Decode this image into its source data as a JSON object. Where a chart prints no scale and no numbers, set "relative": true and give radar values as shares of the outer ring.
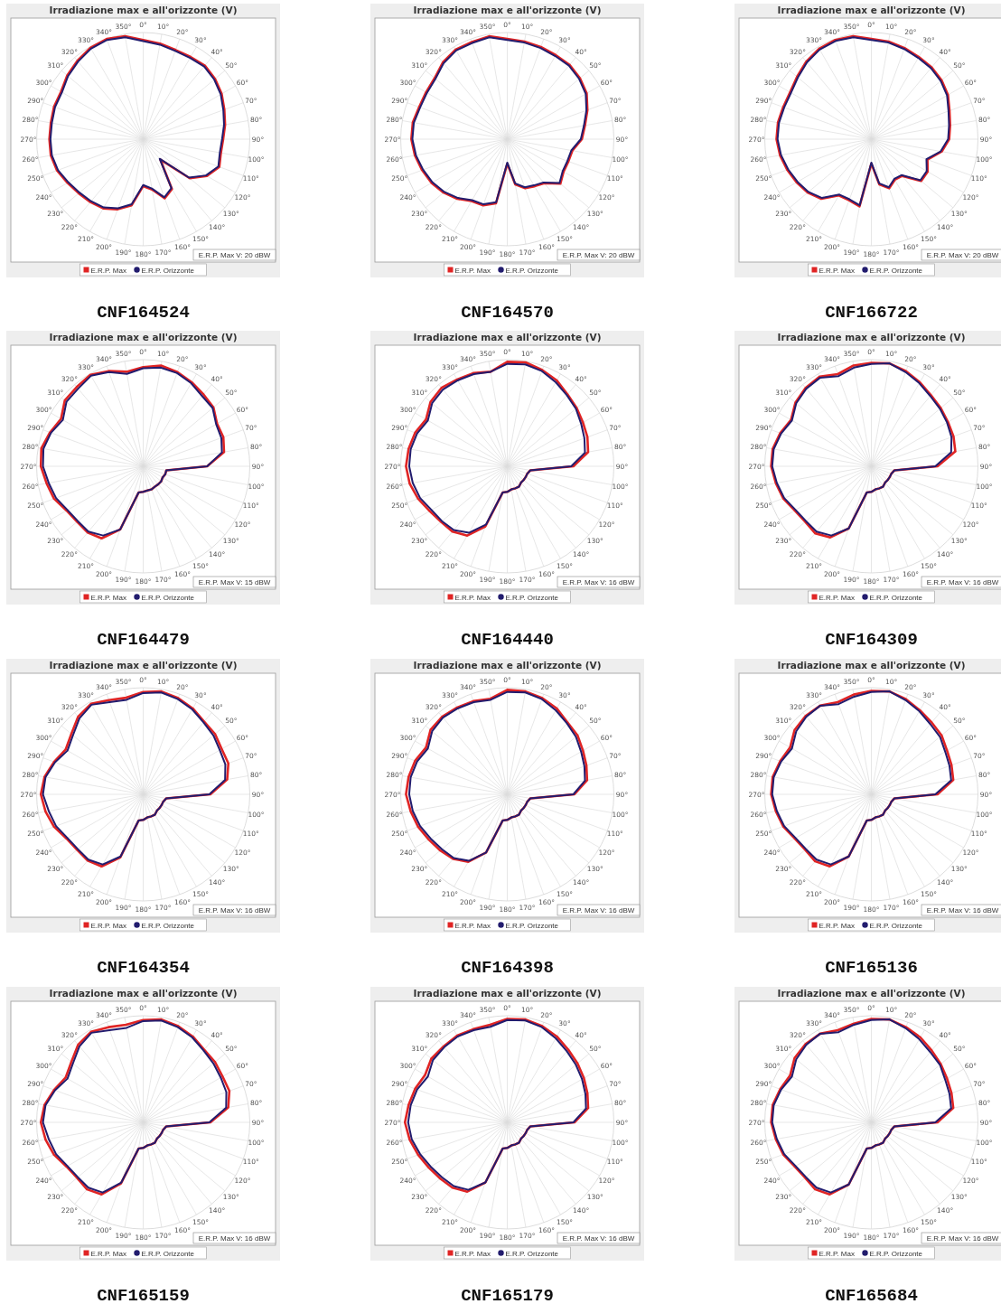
{
  "chart_data": [
    {
      "type": "radar",
      "title": "Irradiazione max e all'orizzonte (V)",
      "relative": true,
      "grid": true,
      "legend": "bottom",
      "categories": [
        "0°",
        "10°",
        "20°",
        "30°",
        "40°",
        "50°",
        "60°",
        "70°",
        "80°",
        "90°",
        "100°",
        "110°",
        "120°",
        "130°",
        "140°",
        "150°",
        "160°",
        "170°",
        "180°",
        "190°",
        "200°",
        "210°",
        "220°",
        "230°",
        "240°",
        "250°",
        "260°",
        "270°",
        "280°",
        "290°",
        "300°",
        "310°",
        "320°",
        "330°",
        "340°",
        "350°"
      ],
      "annotations": [
        "E.R.P. Max V: 20 dBW",
        "CNF164524"
      ],
      "series": [
        {
          "name": "E.R.P. Max",
          "color": "#e02424",
          "values": [
            0.93,
            0.91,
            0.89,
            0.89,
            0.9,
            0.88,
            0.85,
            0.81,
            0.78,
            0.75,
            0.74,
            0.76,
            0.69,
            0.57,
            0.25,
            0.54,
            0.59,
            0.48,
            0.44,
            0.63,
            0.7,
            0.75,
            0.77,
            0.79,
            0.82,
            0.86,
            0.88,
            0.88,
            0.88,
            0.89,
            0.89,
            0.93,
            0.96,
            0.99,
            1,
            0.98
          ]
        },
        {
          "name": "E.R.P. Orizzonte",
          "color": "#221c6e",
          "values": [
            0.92,
            0.9,
            0.88,
            0.88,
            0.89,
            0.87,
            0.84,
            0.8,
            0.77,
            0.74,
            0.73,
            0.75,
            0.68,
            0.56,
            0.24,
            0.53,
            0.58,
            0.47,
            0.43,
            0.62,
            0.69,
            0.74,
            0.76,
            0.78,
            0.81,
            0.85,
            0.87,
            0.87,
            0.87,
            0.88,
            0.88,
            0.92,
            0.95,
            0.98,
            0.99,
            0.97
          ]
        }
      ]
    },
    {
      "type": "radar",
      "title": "Irradiazione max e all'orizzonte (V)",
      "relative": true,
      "grid": true,
      "legend": "bottom",
      "categories": [
        "0°",
        "10°",
        "20°",
        "30°",
        "40°",
        "50°",
        "60°",
        "70°",
        "80°",
        "90°",
        "100°",
        "110°",
        "120°",
        "130°",
        "140°",
        "150°",
        "160°",
        "170°",
        "180°",
        "190°",
        "200°",
        "210°",
        "220°",
        "230°",
        "240°",
        "250°",
        "260°",
        "270°",
        "280°",
        "290°",
        "300°",
        "310°",
        "320°",
        "330°",
        "340°",
        "350°"
      ],
      "annotations": [
        "E.R.P. Max V: 20 dBW",
        "CNF164570"
      ],
      "series": [
        {
          "name": "E.R.P. Max",
          "color": "#e02424",
          "values": [
            0.94,
            0.93,
            0.92,
            0.91,
            0.91,
            0.89,
            0.86,
            0.8,
            0.74,
            0.7,
            0.62,
            0.61,
            0.61,
            0.65,
            0.54,
            0.51,
            0.49,
            0.43,
            0.23,
            0.61,
            0.66,
            0.67,
            0.73,
            0.78,
            0.82,
            0.85,
            0.88,
            0.9,
            0.9,
            0.88,
            0.88,
            0.89,
            0.94,
            0.97,
            0.97,
            0.98
          ]
        },
        {
          "name": "E.R.P. Orizzonte",
          "color": "#221c6e",
          "values": [
            0.93,
            0.92,
            0.91,
            0.9,
            0.9,
            0.88,
            0.85,
            0.79,
            0.73,
            0.69,
            0.61,
            0.6,
            0.6,
            0.64,
            0.53,
            0.5,
            0.48,
            0.42,
            0.22,
            0.6,
            0.65,
            0.66,
            0.72,
            0.77,
            0.81,
            0.84,
            0.87,
            0.89,
            0.89,
            0.87,
            0.87,
            0.88,
            0.93,
            0.96,
            0.96,
            0.97
          ]
        }
      ]
    },
    {
      "type": "radar",
      "title": "Irradiazione max e all'orizzonte (V)",
      "relative": true,
      "grid": true,
      "legend": "bottom",
      "categories": [
        "0°",
        "10°",
        "20°",
        "30°",
        "40°",
        "50°",
        "60°",
        "70°",
        "80°",
        "90°",
        "100°",
        "110°",
        "120°",
        "130°",
        "140°",
        "150°",
        "160°",
        "170°",
        "180°",
        "190°",
        "200°",
        "210°",
        "220°",
        "230°",
        "240°",
        "250°",
        "260°",
        "270°",
        "280°",
        "290°",
        "300°",
        "310°",
        "320°",
        "330°",
        "340°",
        "350°"
      ],
      "annotations": [
        "E.R.P. Max V: 20 dBW",
        "CNF166722"
      ],
      "series": [
        {
          "name": "E.R.P. Max",
          "color": "#e02424",
          "values": [
            0.94,
            0.93,
            0.91,
            0.89,
            0.88,
            0.86,
            0.83,
            0.78,
            0.75,
            0.73,
            0.67,
            0.56,
            0.61,
            0.61,
            0.45,
            0.44,
            0.49,
            0.43,
            0.23,
            0.64,
            0.61,
            0.61,
            0.73,
            0.78,
            0.81,
            0.84,
            0.87,
            0.89,
            0.89,
            0.88,
            0.88,
            0.91,
            0.95,
            0.98,
            0.99,
            0.98
          ]
        },
        {
          "name": "E.R.P. Orizzonte",
          "color": "#221c6e",
          "values": [
            0.93,
            0.92,
            0.9,
            0.88,
            0.87,
            0.85,
            0.82,
            0.77,
            0.74,
            0.72,
            0.66,
            0.55,
            0.6,
            0.6,
            0.44,
            0.43,
            0.48,
            0.42,
            0.22,
            0.63,
            0.6,
            0.6,
            0.72,
            0.77,
            0.8,
            0.83,
            0.86,
            0.88,
            0.88,
            0.87,
            0.87,
            0.9,
            0.94,
            0.97,
            0.98,
            0.97
          ]
        }
      ]
    },
    {
      "type": "radar",
      "title": "Irradiazione max e all'orizzonte (V)",
      "relative": true,
      "grid": true,
      "legend": "bottom",
      "categories": [
        "0°",
        "10°",
        "20°",
        "30°",
        "40°",
        "50°",
        "60°",
        "70°",
        "80°",
        "90°",
        "100°",
        "110°",
        "120°",
        "130°",
        "140°",
        "150°",
        "160°",
        "170°",
        "180°",
        "190°",
        "200°",
        "210°",
        "220°",
        "230°",
        "240°",
        "250°",
        "260°",
        "270°",
        "280°",
        "290°",
        "300°",
        "310°",
        "320°",
        "330°",
        "340°",
        "350°"
      ],
      "annotations": [
        "E.R.P. Max V: 15 dBW",
        "CNF164479"
      ],
      "series": [
        {
          "name": "E.R.P. Max",
          "color": "#e02424",
          "values": [
            0.93,
            0.96,
            0.94,
            0.91,
            0.88,
            0.86,
            0.8,
            0.8,
            0.77,
            0.6,
            0.22,
            0.22,
            0.21,
            0.22,
            0.22,
            0.22,
            0.23,
            0.23,
            0.24,
            0.25,
            0.63,
            0.78,
            0.81,
            0.81,
            0.83,
            0.89,
            0.92,
            0.96,
            0.97,
            0.93,
            0.89,
            0.96,
            0.97,
            0.99,
            0.95,
            0.9
          ]
        },
        {
          "name": "E.R.P. Orizzonte",
          "color": "#221c6e",
          "values": [
            0.92,
            0.94,
            0.93,
            0.9,
            0.86,
            0.85,
            0.79,
            0.78,
            0.75,
            0.6,
            0.22,
            0.22,
            0.21,
            0.22,
            0.22,
            0.22,
            0.23,
            0.23,
            0.24,
            0.25,
            0.63,
            0.75,
            0.8,
            0.8,
            0.82,
            0.87,
            0.9,
            0.94,
            0.95,
            0.92,
            0.87,
            0.94,
            0.95,
            0.98,
            0.94,
            0.88
          ]
        }
      ]
    },
    {
      "type": "radar",
      "title": "Irradiazione max e all'orizzonte (V)",
      "relative": true,
      "grid": true,
      "legend": "bottom",
      "categories": [
        "0°",
        "10°",
        "20°",
        "30°",
        "40°",
        "50°",
        "60°",
        "70°",
        "80°",
        "90°",
        "100°",
        "110°",
        "120°",
        "130°",
        "140°",
        "150°",
        "160°",
        "170°",
        "180°",
        "190°",
        "200°",
        "210°",
        "220°",
        "230°",
        "240°",
        "250°",
        "260°",
        "270°",
        "280°",
        "290°",
        "300°",
        "310°",
        "320°",
        "330°",
        "340°",
        "350°"
      ],
      "annotations": [
        "E.R.P. Max V: 16 dBW",
        "CNF164440"
      ],
      "series": [
        {
          "name": "E.R.P. Max",
          "color": "#e02424",
          "values": [
            0.98,
            0.99,
            0.96,
            0.93,
            0.88,
            0.85,
            0.82,
            0.8,
            0.77,
            0.62,
            0.22,
            0.2,
            0.2,
            0.2,
            0.2,
            0.22,
            0.22,
            0.22,
            0.24,
            0.25,
            0.6,
            0.75,
            0.8,
            0.81,
            0.84,
            0.89,
            0.93,
            0.95,
            0.94,
            0.92,
            0.88,
            0.94,
            0.96,
            0.94,
            0.93,
            0.9
          ]
        },
        {
          "name": "E.R.P. Orizzonte",
          "color": "#221c6e",
          "values": [
            0.96,
            0.97,
            0.95,
            0.91,
            0.87,
            0.84,
            0.8,
            0.77,
            0.74,
            0.6,
            0.22,
            0.2,
            0.2,
            0.2,
            0.2,
            0.22,
            0.22,
            0.22,
            0.24,
            0.25,
            0.58,
            0.72,
            0.78,
            0.8,
            0.82,
            0.87,
            0.9,
            0.92,
            0.92,
            0.9,
            0.86,
            0.92,
            0.94,
            0.93,
            0.92,
            0.9
          ]
        }
      ]
    },
    {
      "type": "radar",
      "title": "Irradiazione max e all'orizzonte (V)",
      "relative": true,
      "grid": true,
      "legend": "bottom",
      "categories": [
        "0°",
        "10°",
        "20°",
        "30°",
        "40°",
        "50°",
        "60°",
        "70°",
        "80°",
        "90°",
        "100°",
        "110°",
        "120°",
        "130°",
        "140°",
        "150°",
        "160°",
        "170°",
        "180°",
        "190°",
        "200°",
        "210°",
        "220°",
        "230°",
        "240°",
        "250°",
        "260°",
        "270°",
        "280°",
        "290°",
        "300°",
        "310°",
        "320°",
        "330°",
        "340°",
        "350°"
      ],
      "annotations": [
        "E.R.P. Max V: 16 dBW",
        "CNF164309"
      ],
      "series": [
        {
          "name": "E.R.P. Max",
          "color": "#e02424",
          "values": [
            0.97,
            0.98,
            0.95,
            0.91,
            0.87,
            0.85,
            0.83,
            0.82,
            0.8,
            0.62,
            0.22,
            0.2,
            0.2,
            0.2,
            0.2,
            0.22,
            0.22,
            0.22,
            0.24,
            0.25,
            0.62,
            0.77,
            0.82,
            0.81,
            0.83,
            0.88,
            0.91,
            0.94,
            0.94,
            0.91,
            0.87,
            0.93,
            0.96,
            0.97,
            0.92,
            0.96
          ]
        },
        {
          "name": "E.R.P. Orizzonte",
          "color": "#221c6e",
          "values": [
            0.96,
            0.98,
            0.94,
            0.9,
            0.86,
            0.84,
            0.82,
            0.8,
            0.76,
            0.6,
            0.22,
            0.2,
            0.2,
            0.2,
            0.2,
            0.22,
            0.22,
            0.22,
            0.24,
            0.25,
            0.62,
            0.75,
            0.8,
            0.8,
            0.82,
            0.87,
            0.9,
            0.93,
            0.93,
            0.9,
            0.86,
            0.92,
            0.95,
            0.96,
            0.9,
            0.94
          ]
        }
      ]
    },
    {
      "type": "radar",
      "title": "Irradiazione max e all'orizzonte (V)",
      "relative": true,
      "grid": true,
      "legend": "bottom",
      "categories": [
        "0°",
        "10°",
        "20°",
        "30°",
        "40°",
        "50°",
        "60°",
        "70°",
        "80°",
        "90°",
        "100°",
        "110°",
        "120°",
        "130°",
        "140°",
        "150°",
        "160°",
        "170°",
        "180°",
        "190°",
        "200°",
        "210°",
        "220°",
        "230°",
        "240°",
        "250°",
        "260°",
        "270°",
        "280°",
        "290°",
        "300°",
        "310°",
        "320°",
        "330°",
        "340°",
        "350°"
      ],
      "annotations": [
        "E.R.P. Max V: 16 dBW",
        "CNF164354"
      ],
      "series": [
        {
          "name": "E.R.P. Max",
          "color": "#e02424",
          "values": [
            0.96,
            0.98,
            0.96,
            0.93,
            0.89,
            0.88,
            0.85,
            0.85,
            0.8,
            0.63,
            0.22,
            0.2,
            0.2,
            0.2,
            0.2,
            0.22,
            0.22,
            0.22,
            0.24,
            0.25,
            0.63,
            0.78,
            0.81,
            0.81,
            0.83,
            0.89,
            0.93,
            0.96,
            0.94,
            0.89,
            0.84,
            0.88,
            0.95,
            0.98,
            0.94,
            0.92
          ]
        },
        {
          "name": "E.R.P. Orizzonte",
          "color": "#221c6e",
          "values": [
            0.95,
            0.97,
            0.95,
            0.92,
            0.88,
            0.86,
            0.83,
            0.82,
            0.78,
            0.62,
            0.22,
            0.2,
            0.2,
            0.2,
            0.2,
            0.22,
            0.22,
            0.22,
            0.24,
            0.25,
            0.62,
            0.76,
            0.8,
            0.8,
            0.82,
            0.87,
            0.9,
            0.94,
            0.93,
            0.88,
            0.82,
            0.86,
            0.93,
            0.97,
            0.92,
            0.9
          ]
        }
      ]
    },
    {
      "type": "radar",
      "title": "Irradiazione max e all'orizzonte (V)",
      "relative": true,
      "grid": true,
      "legend": "bottom",
      "categories": [
        "0°",
        "10°",
        "20°",
        "30°",
        "40°",
        "50°",
        "60°",
        "70°",
        "80°",
        "90°",
        "100°",
        "110°",
        "120°",
        "130°",
        "140°",
        "150°",
        "160°",
        "170°",
        "180°",
        "190°",
        "200°",
        "210°",
        "220°",
        "230°",
        "240°",
        "250°",
        "260°",
        "270°",
        "280°",
        "290°",
        "300°",
        "310°",
        "320°",
        "330°",
        "340°",
        "350°"
      ],
      "annotations": [
        "E.R.P. Max V: 16 dBW",
        "CNF164398"
      ],
      "series": [
        {
          "name": "E.R.P. Max",
          "color": "#e02424",
          "values": [
            0.98,
            0.98,
            0.96,
            0.93,
            0.88,
            0.86,
            0.82,
            0.79,
            0.76,
            0.63,
            0.22,
            0.2,
            0.2,
            0.2,
            0.2,
            0.22,
            0.22,
            0.22,
            0.24,
            0.25,
            0.58,
            0.73,
            0.79,
            0.82,
            0.85,
            0.89,
            0.92,
            0.95,
            0.94,
            0.92,
            0.88,
            0.94,
            0.95,
            0.94,
            0.93,
            0.91
          ]
        },
        {
          "name": "E.R.P. Orizzonte",
          "color": "#221c6e",
          "values": [
            0.96,
            0.97,
            0.95,
            0.91,
            0.87,
            0.84,
            0.8,
            0.77,
            0.74,
            0.62,
            0.22,
            0.2,
            0.2,
            0.2,
            0.2,
            0.22,
            0.22,
            0.22,
            0.24,
            0.25,
            0.58,
            0.72,
            0.78,
            0.8,
            0.83,
            0.87,
            0.9,
            0.92,
            0.92,
            0.9,
            0.86,
            0.92,
            0.94,
            0.93,
            0.92,
            0.9
          ]
        }
      ]
    },
    {
      "type": "radar",
      "title": "Irradiazione max e all'orizzonte (V)",
      "relative": true,
      "grid": true,
      "legend": "bottom",
      "categories": [
        "0°",
        "10°",
        "20°",
        "30°",
        "40°",
        "50°",
        "60°",
        "70°",
        "80°",
        "90°",
        "100°",
        "110°",
        "120°",
        "130°",
        "140°",
        "150°",
        "160°",
        "170°",
        "180°",
        "190°",
        "200°",
        "210°",
        "220°",
        "230°",
        "240°",
        "250°",
        "260°",
        "270°",
        "280°",
        "290°",
        "300°",
        "310°",
        "320°",
        "330°",
        "340°",
        "350°"
      ],
      "annotations": [
        "E.R.P. Max V: 16 dBW",
        "CNF165136"
      ],
      "series": [
        {
          "name": "E.R.P. Max",
          "color": "#e02424",
          "values": [
            0.97,
            0.98,
            0.95,
            0.91,
            0.88,
            0.86,
            0.82,
            0.8,
            0.78,
            0.62,
            0.22,
            0.2,
            0.2,
            0.2,
            0.2,
            0.22,
            0.22,
            0.22,
            0.24,
            0.25,
            0.62,
            0.78,
            0.82,
            0.81,
            0.83,
            0.88,
            0.91,
            0.94,
            0.94,
            0.91,
            0.88,
            0.94,
            0.96,
            0.96,
            0.92,
            0.95
          ]
        },
        {
          "name": "E.R.P. Orizzonte",
          "color": "#221c6e",
          "values": [
            0.96,
            0.98,
            0.94,
            0.9,
            0.86,
            0.84,
            0.8,
            0.78,
            0.76,
            0.6,
            0.22,
            0.2,
            0.2,
            0.2,
            0.2,
            0.22,
            0.22,
            0.22,
            0.24,
            0.25,
            0.62,
            0.76,
            0.8,
            0.8,
            0.82,
            0.87,
            0.9,
            0.93,
            0.93,
            0.9,
            0.86,
            0.92,
            0.95,
            0.96,
            0.9,
            0.93
          ]
        }
      ]
    },
    {
      "type": "radar",
      "title": "Irradiazione max e all'orizzonte (V)",
      "relative": true,
      "grid": true,
      "legend": "bottom",
      "categories": [
        "0°",
        "10°",
        "20°",
        "30°",
        "40°",
        "50°",
        "60°",
        "70°",
        "80°",
        "90°",
        "100°",
        "110°",
        "120°",
        "130°",
        "140°",
        "150°",
        "160°",
        "170°",
        "180°",
        "190°",
        "200°",
        "210°",
        "220°",
        "230°",
        "240°",
        "250°",
        "260°",
        "270°",
        "280°",
        "290°",
        "300°",
        "310°",
        "320°",
        "330°",
        "340°",
        "350°"
      ],
      "annotations": [
        "E.R.P. Max V: 16 dBW",
        "CNF165159"
      ],
      "series": [
        {
          "name": "E.R.P. Max",
          "color": "#e02424",
          "values": [
            0.96,
            0.98,
            0.96,
            0.93,
            0.89,
            0.88,
            0.86,
            0.86,
            0.81,
            0.63,
            0.22,
            0.2,
            0.2,
            0.2,
            0.2,
            0.22,
            0.22,
            0.22,
            0.24,
            0.25,
            0.61,
            0.78,
            0.82,
            0.81,
            0.83,
            0.89,
            0.93,
            0.96,
            0.94,
            0.89,
            0.84,
            0.88,
            0.95,
            0.98,
            0.95,
            0.93
          ]
        },
        {
          "name": "E.R.P. Orizzonte",
          "color": "#221c6e",
          "values": [
            0.95,
            0.97,
            0.95,
            0.92,
            0.88,
            0.86,
            0.84,
            0.83,
            0.79,
            0.62,
            0.22,
            0.2,
            0.2,
            0.2,
            0.2,
            0.22,
            0.22,
            0.22,
            0.24,
            0.25,
            0.6,
            0.76,
            0.8,
            0.8,
            0.82,
            0.87,
            0.9,
            0.94,
            0.93,
            0.88,
            0.82,
            0.86,
            0.93,
            0.97,
            0.92,
            0.9
          ]
        }
      ]
    },
    {
      "type": "radar",
      "title": "Irradiazione max e all'orizzonte (V)",
      "relative": true,
      "grid": true,
      "legend": "bottom",
      "categories": [
        "0°",
        "10°",
        "20°",
        "30°",
        "40°",
        "50°",
        "60°",
        "70°",
        "80°",
        "90°",
        "100°",
        "110°",
        "120°",
        "130°",
        "140°",
        "150°",
        "160°",
        "170°",
        "180°",
        "190°",
        "200°",
        "210°",
        "220°",
        "230°",
        "240°",
        "250°",
        "260°",
        "270°",
        "280°",
        "290°",
        "300°",
        "310°",
        "320°",
        "330°",
        "340°",
        "350°"
      ],
      "annotations": [
        "E.R.P. Max V: 16 dBW",
        "CNF165179"
      ],
      "series": [
        {
          "name": "E.R.P. Max",
          "color": "#e02424",
          "values": [
            0.97,
            0.98,
            0.96,
            0.93,
            0.89,
            0.86,
            0.83,
            0.8,
            0.77,
            0.63,
            0.22,
            0.2,
            0.2,
            0.2,
            0.2,
            0.22,
            0.22,
            0.22,
            0.24,
            0.25,
            0.6,
            0.75,
            0.8,
            0.82,
            0.85,
            0.89,
            0.93,
            0.96,
            0.94,
            0.92,
            0.89,
            0.93,
            0.93,
            0.94,
            0.93,
            0.93
          ]
        },
        {
          "name": "E.R.P. Orizzonte",
          "color": "#221c6e",
          "values": [
            0.96,
            0.97,
            0.95,
            0.91,
            0.87,
            0.84,
            0.81,
            0.78,
            0.75,
            0.62,
            0.22,
            0.2,
            0.2,
            0.2,
            0.2,
            0.22,
            0.22,
            0.22,
            0.24,
            0.25,
            0.6,
            0.73,
            0.78,
            0.8,
            0.83,
            0.87,
            0.91,
            0.93,
            0.92,
            0.9,
            0.86,
            0.91,
            0.92,
            0.93,
            0.92,
            0.91
          ]
        }
      ]
    },
    {
      "type": "radar",
      "title": "Irradiazione max e all'orizzonte (V)",
      "relative": true,
      "grid": true,
      "legend": "bottom",
      "categories": [
        "0°",
        "10°",
        "20°",
        "30°",
        "40°",
        "50°",
        "60°",
        "70°",
        "80°",
        "90°",
        "100°",
        "110°",
        "120°",
        "130°",
        "140°",
        "150°",
        "160°",
        "170°",
        "180°",
        "190°",
        "200°",
        "210°",
        "220°",
        "230°",
        "240°",
        "250°",
        "260°",
        "270°",
        "280°",
        "290°",
        "300°",
        "310°",
        "320°",
        "330°",
        "340°",
        "350°"
      ],
      "annotations": [
        "E.R.P. Max V: 16 dBW",
        "CNF165684"
      ],
      "series": [
        {
          "name": "E.R.P. Max",
          "color": "#e02424",
          "values": [
            0.97,
            0.98,
            0.95,
            0.92,
            0.88,
            0.85,
            0.82,
            0.8,
            0.78,
            0.62,
            0.22,
            0.2,
            0.2,
            0.2,
            0.2,
            0.22,
            0.22,
            0.22,
            0.24,
            0.25,
            0.62,
            0.78,
            0.82,
            0.81,
            0.83,
            0.88,
            0.91,
            0.94,
            0.94,
            0.91,
            0.88,
            0.94,
            0.96,
            0.96,
            0.92,
            0.94
          ]
        },
        {
          "name": "E.R.P. Orizzonte",
          "color": "#221c6e",
          "values": [
            0.96,
            0.98,
            0.94,
            0.9,
            0.86,
            0.84,
            0.8,
            0.78,
            0.76,
            0.6,
            0.22,
            0.2,
            0.2,
            0.2,
            0.2,
            0.22,
            0.22,
            0.22,
            0.24,
            0.25,
            0.62,
            0.76,
            0.8,
            0.8,
            0.82,
            0.87,
            0.9,
            0.93,
            0.93,
            0.9,
            0.86,
            0.92,
            0.95,
            0.96,
            0.9,
            0.93
          ]
        }
      ]
    }
  ]
}
